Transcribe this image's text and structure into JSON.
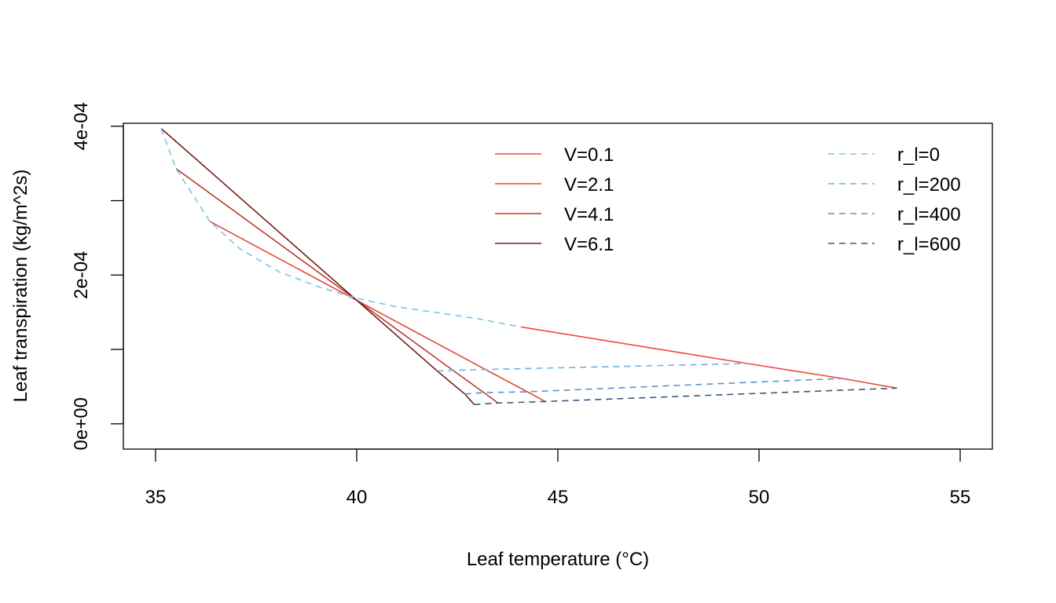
{
  "chart_data": {
    "type": "line",
    "title": "",
    "xlabel": "Leaf temperature (°C)",
    "ylabel": "Leaf transpiration (kg/m^2s)",
    "xlim": [
      34.2,
      55.8
    ],
    "ylim": [
      -3.4e-05,
      0.000404
    ],
    "xticks": [
      35,
      40,
      45,
      50,
      55
    ],
    "xtick_labels": [
      "35",
      "40",
      "45",
      "50",
      "55"
    ],
    "yticks": [
      0,
      0.0001,
      0.0002,
      0.0003,
      0.0004
    ],
    "ytick_labels": [
      "0e+00",
      "",
      "2e-04",
      "",
      "4e-04"
    ],
    "grid": false,
    "legend_placement": "top-right",
    "series": [
      {
        "name": "V=0.1",
        "style": "solid",
        "color": "#F0483A",
        "x": [
          44.1,
          49.71,
          52.06,
          53.43
        ],
        "y": [
          0.00013,
          8.1e-05,
          6.1e-05,
          4.8e-05
        ]
      },
      {
        "name": "V=2.1",
        "style": "solid",
        "color": "#E04A3A",
        "x": [
          36.35,
          43.2,
          44.24,
          44.69
        ],
        "y": [
          0.000272,
          7.3e-05,
          4.3e-05,
          3e-05
        ]
      },
      {
        "name": "V=4.1",
        "style": "solid",
        "color": "#BF3A2C",
        "x": [
          35.51,
          42.39,
          43.16,
          43.51
        ],
        "y": [
          0.000343,
          7.2e-05,
          4.2e-05,
          2.8e-05
        ]
      },
      {
        "name": "V=6.1",
        "style": "solid",
        "color": "#6E2218",
        "x": [
          35.14,
          42.0,
          42.69,
          42.92
        ],
        "y": [
          0.000397,
          7.1e-05,
          4e-05,
          2.6e-05
        ]
      },
      {
        "name": "r_l=0",
        "style": "dashed",
        "color": "#7CC3EA",
        "x": [
          35.14,
          35.51,
          36.35,
          37.1,
          38.08,
          39.06,
          39.98,
          41.02,
          42.06,
          43.04,
          44.1
        ],
        "y": [
          0.000397,
          0.000343,
          0.000272,
          0.000235,
          0.000204,
          0.000184,
          0.000169,
          0.000157,
          0.000149,
          0.000141,
          0.00013
        ]
      },
      {
        "name": "r_l=200",
        "style": "dashed",
        "color": "#6AB3E6",
        "x": [
          42.0,
          42.39,
          43.2,
          49.71
        ],
        "y": [
          7.1e-05,
          7.2e-05,
          7.3e-05,
          8.1e-05
        ]
      },
      {
        "name": "r_l=400",
        "style": "dashed",
        "color": "#5A94C4",
        "x": [
          42.69,
          43.16,
          44.24,
          52.06
        ],
        "y": [
          4e-05,
          4.2e-05,
          4.3e-05,
          6.1e-05
        ]
      },
      {
        "name": "r_l=600",
        "style": "dashed",
        "color": "#3B5878",
        "x": [
          42.92,
          43.51,
          44.69,
          53.43
        ],
        "y": [
          2.6e-05,
          2.8e-05,
          3e-05,
          4.8e-05
        ]
      }
    ]
  }
}
